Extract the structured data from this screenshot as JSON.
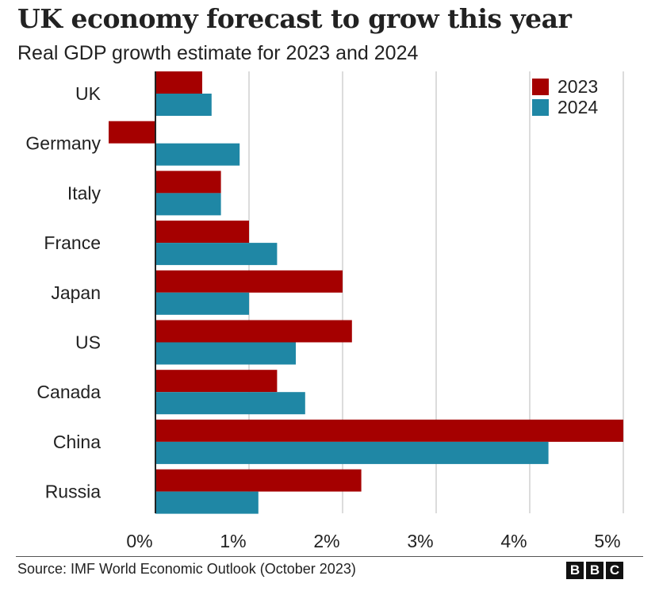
{
  "title": "UK economy forecast to grow this year",
  "subtitle": "Real GDP growth estimate for 2023 and 2024",
  "source": "Source: IMF World Economic Outlook (October 2023)",
  "logo": {
    "letters": [
      "B",
      "B",
      "C"
    ]
  },
  "colors": {
    "series_2023": "#a50000",
    "series_2024": "#1f87a5",
    "grid": "#d0d0d0",
    "axis": "#222222"
  },
  "chart_data": {
    "type": "bar",
    "orientation": "horizontal",
    "title": "UK economy forecast to grow this year",
    "subtitle": "Real GDP growth estimate for 2023 and 2024",
    "categories": [
      "UK",
      "Germany",
      "Italy",
      "France",
      "Japan",
      "US",
      "Canada",
      "China",
      "Russia"
    ],
    "series": [
      {
        "name": "2023",
        "values": [
          0.5,
          -0.5,
          0.7,
          1.0,
          2.0,
          2.1,
          1.3,
          5.0,
          2.2
        ]
      },
      {
        "name": "2024",
        "values": [
          0.6,
          0.9,
          0.7,
          1.3,
          1.0,
          1.5,
          1.6,
          4.2,
          1.1
        ]
      }
    ],
    "x_ticks": [
      0,
      1,
      2,
      3,
      4,
      5
    ],
    "x_tick_labels": [
      "0%",
      "1%",
      "2%",
      "3%",
      "4%",
      "5%"
    ],
    "xlim": [
      -0.5,
      5
    ],
    "xlabel": "",
    "ylabel": "",
    "grid": true,
    "legend": {
      "position": "top-right",
      "entries": [
        "2023",
        "2024"
      ]
    }
  }
}
